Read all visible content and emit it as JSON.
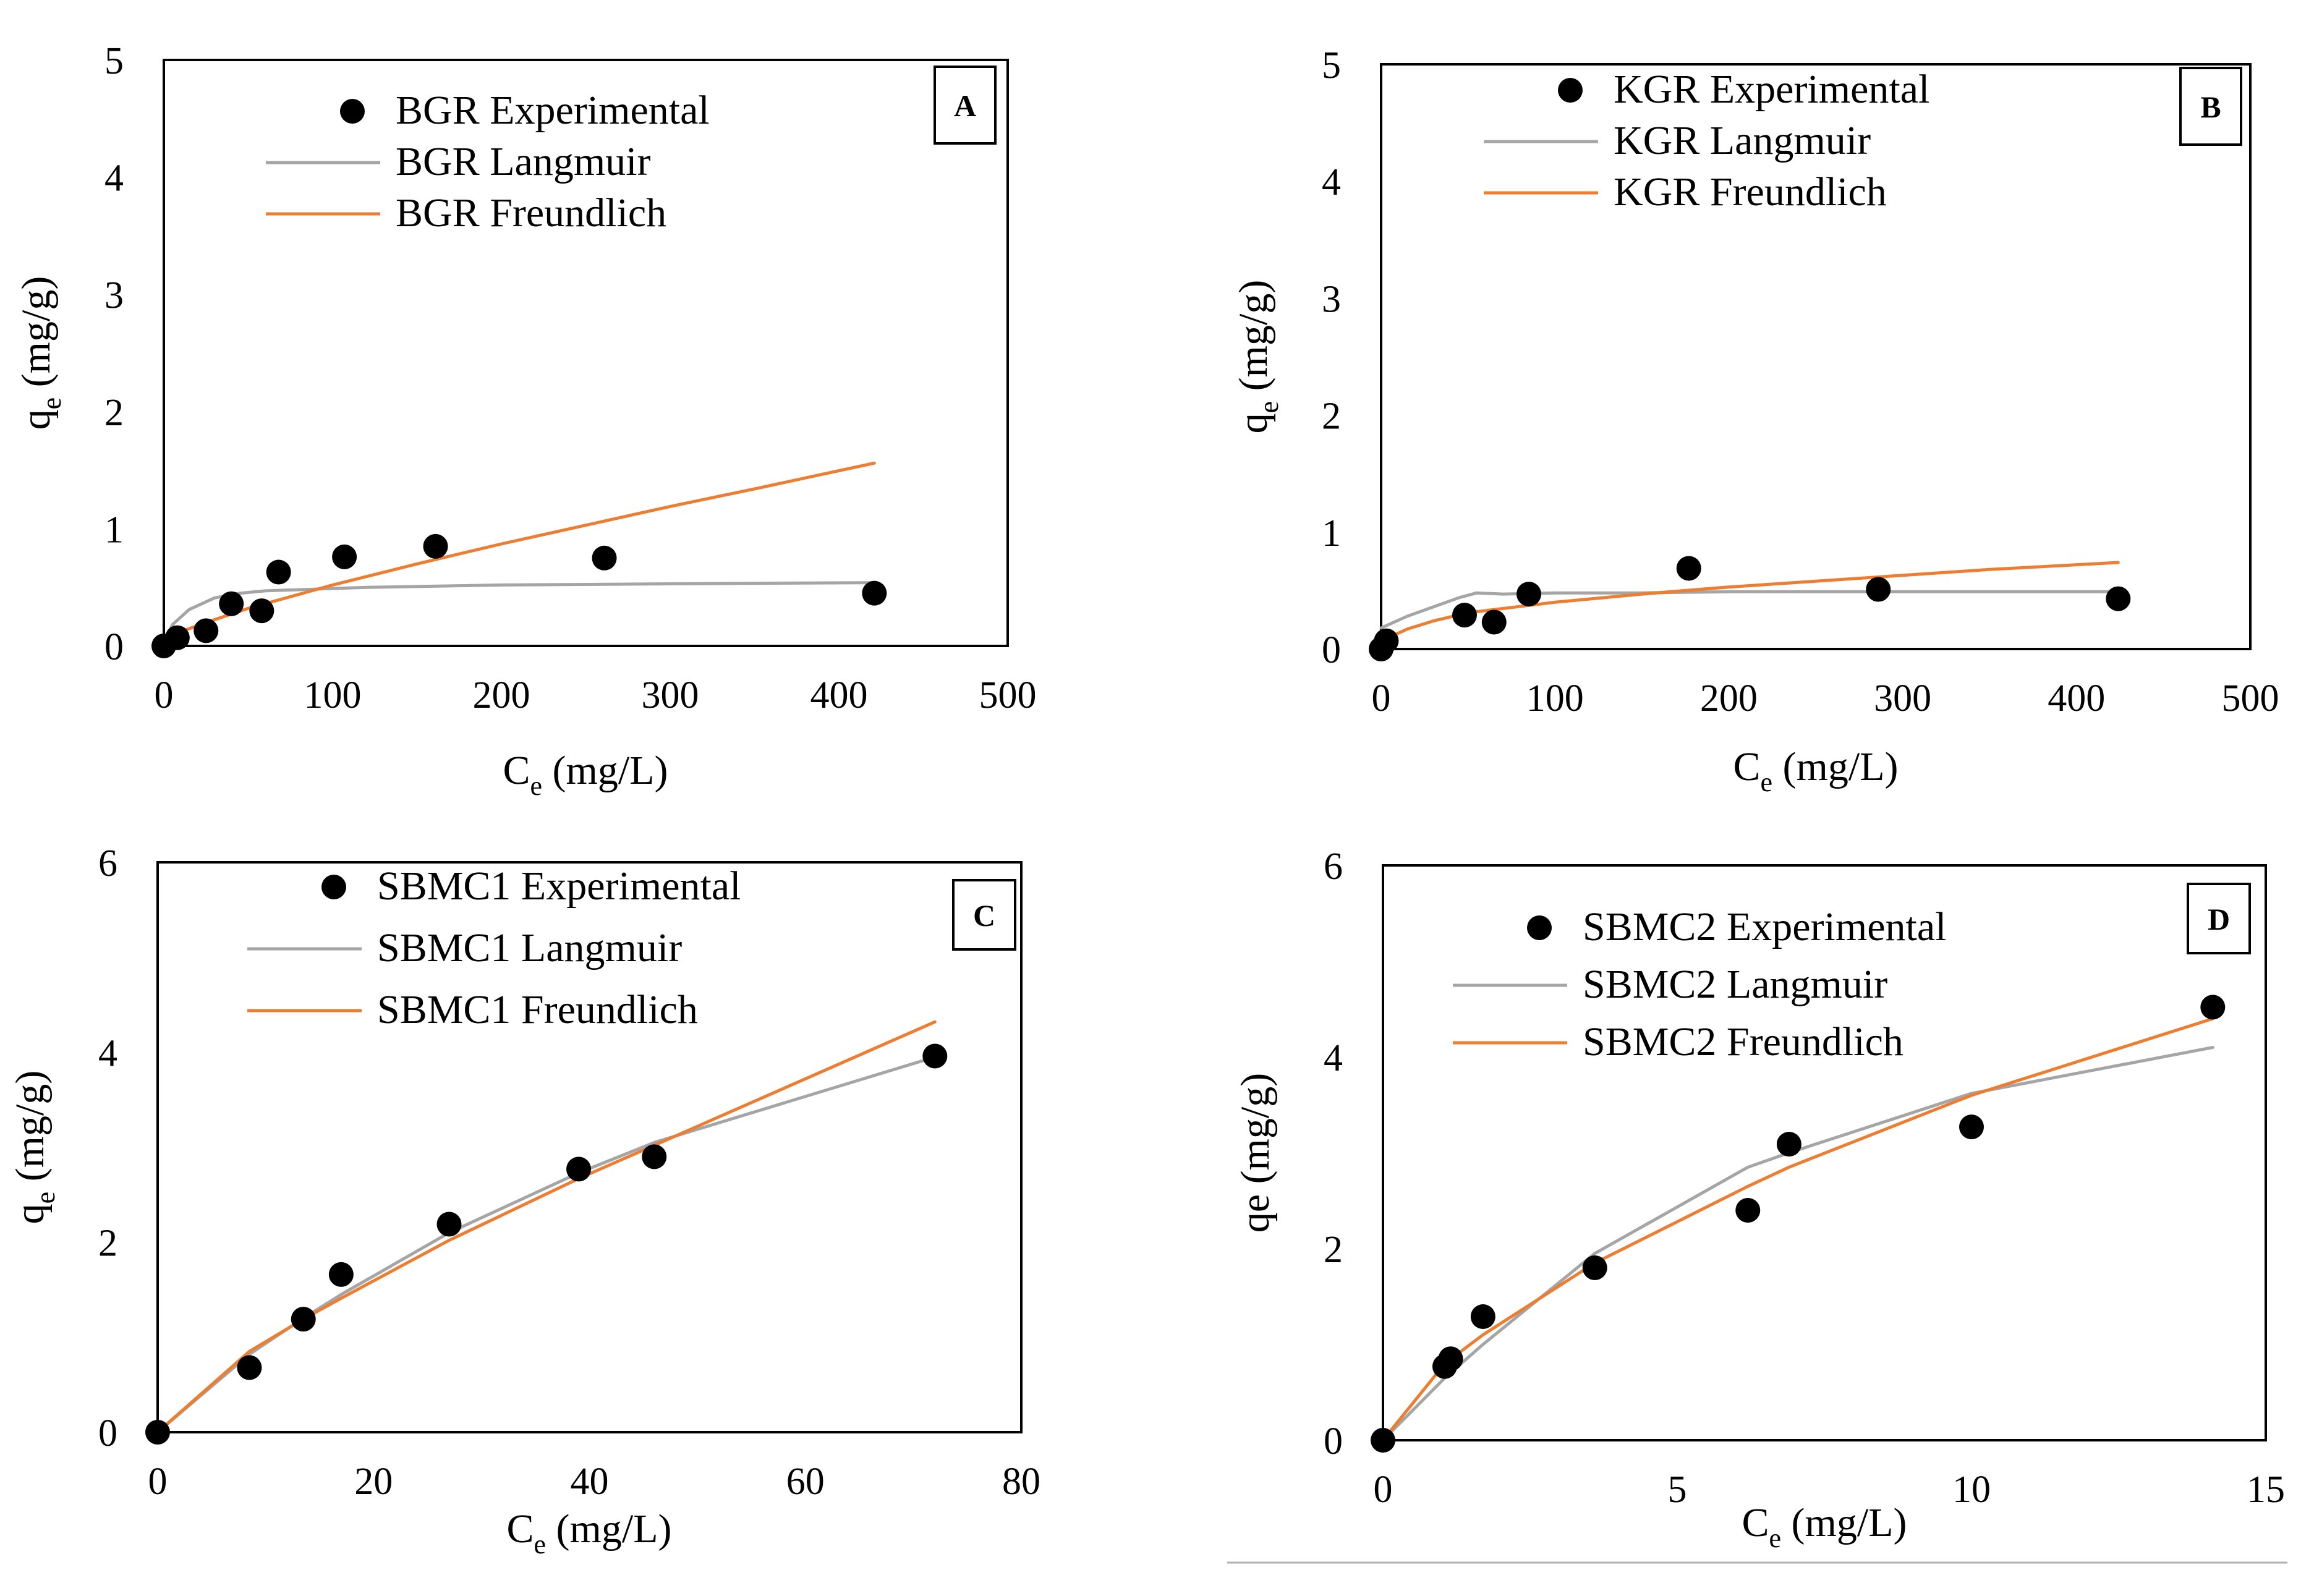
{
  "chart_data": [
    {
      "type": "scatter",
      "panel_label": "A",
      "xlabel": {
        "base": "C",
        "sub": "e",
        "rest": " (mg/L)"
      },
      "ylabel": {
        "base": "q",
        "sub": "e",
        "rest": " (mg/g)"
      },
      "xlim": [
        0,
        500
      ],
      "ylim": [
        0,
        5
      ],
      "xticks": [
        "0",
        "100",
        "200",
        "300",
        "400",
        "500"
      ],
      "yticks": [
        "0",
        "1",
        "2",
        "3",
        "4",
        "5"
      ],
      "legend_position": "top-center",
      "series": [
        {
          "name": "BGR Experimental",
          "kind": "markers",
          "color": "#000000",
          "points": [
            [
              0,
              0
            ],
            [
              8,
              0.07
            ],
            [
              25,
              0.13
            ],
            [
              40,
              0.36
            ],
            [
              58,
              0.3
            ],
            [
              68,
              0.63
            ],
            [
              107,
              0.76
            ],
            [
              161,
              0.85
            ],
            [
              261,
              0.75
            ],
            [
              421,
              0.45
            ]
          ]
        },
        {
          "name": "BGR Langmuir",
          "kind": "line",
          "color": "#a5a5a5",
          "points": [
            [
              0,
              0
            ],
            [
              5,
              0.18
            ],
            [
              15,
              0.31
            ],
            [
              30,
              0.41
            ],
            [
              45,
              0.45
            ],
            [
              60,
              0.47
            ],
            [
              80,
              0.48
            ],
            [
              120,
              0.5
            ],
            [
              200,
              0.52
            ],
            [
              300,
              0.53
            ],
            [
              421,
              0.54
            ]
          ]
        },
        {
          "name": "BGR Freundlich",
          "kind": "line",
          "color": "#ed7d31",
          "points": [
            [
              0,
              0
            ],
            [
              8,
              0.11
            ],
            [
              25,
              0.2
            ],
            [
              50,
              0.32
            ],
            [
              100,
              0.52
            ],
            [
              150,
              0.7
            ],
            [
              200,
              0.87
            ],
            [
              250,
              1.03
            ],
            [
              300,
              1.19
            ],
            [
              350,
              1.34
            ],
            [
              421,
              1.56
            ]
          ]
        }
      ]
    },
    {
      "type": "scatter",
      "panel_label": "B",
      "xlabel": {
        "base": "C",
        "sub": "e",
        "rest": " (mg/L)"
      },
      "ylabel": {
        "base": "q",
        "sub": "e",
        "rest": " (mg/g)"
      },
      "xlim": [
        0,
        500
      ],
      "ylim": [
        0,
        5
      ],
      "xticks": [
        "0",
        "100",
        "200",
        "300",
        "400",
        "500"
      ],
      "yticks": [
        "0",
        "1",
        "2",
        "3",
        "4",
        "5"
      ],
      "legend_position": "top-center",
      "series": [
        {
          "name": "KGR Experimental",
          "kind": "markers",
          "color": "#000000",
          "points": [
            [
              0,
              0
            ],
            [
              3,
              0.07
            ],
            [
              48,
              0.29
            ],
            [
              65,
              0.23
            ],
            [
              85,
              0.47
            ],
            [
              177,
              0.69
            ],
            [
              286,
              0.51
            ],
            [
              424,
              0.43
            ]
          ]
        },
        {
          "name": "KGR Langmuir",
          "kind": "line",
          "color": "#a5a5a5",
          "points": [
            [
              0,
              0.18
            ],
            [
              15,
              0.28
            ],
            [
              30,
              0.36
            ],
            [
              45,
              0.44
            ],
            [
              55,
              0.48
            ],
            [
              70,
              0.47
            ],
            [
              100,
              0.48
            ],
            [
              150,
              0.48
            ],
            [
              200,
              0.49
            ],
            [
              300,
              0.49
            ],
            [
              424,
              0.49
            ]
          ]
        },
        {
          "name": "KGR Freundlich",
          "kind": "line",
          "color": "#ed7d31",
          "points": [
            [
              0,
              0.07
            ],
            [
              15,
              0.17
            ],
            [
              30,
              0.24
            ],
            [
              50,
              0.31
            ],
            [
              100,
              0.4
            ],
            [
              150,
              0.47
            ],
            [
              200,
              0.53
            ],
            [
              250,
              0.58
            ],
            [
              300,
              0.63
            ],
            [
              350,
              0.68
            ],
            [
              424,
              0.74
            ]
          ]
        }
      ]
    },
    {
      "type": "scatter",
      "panel_label": "C",
      "xlabel": {
        "base": "C",
        "sub": "e",
        "rest": " (mg/L)"
      },
      "ylabel": {
        "base": "q",
        "sub": "e",
        "rest": " (mg/g)"
      },
      "xlim": [
        0,
        80
      ],
      "ylim": [
        0,
        6
      ],
      "xticks": [
        "0",
        "20",
        "40",
        "60",
        "80"
      ],
      "yticks": [
        "0",
        "2",
        "4",
        "6"
      ],
      "legend_position": "top-center",
      "series": [
        {
          "name": "SBMC1 Experimental",
          "kind": "markers",
          "color": "#000000",
          "points": [
            [
              0,
              0
            ],
            [
              8.5,
              0.68
            ],
            [
              13.5,
              1.19
            ],
            [
              17,
              1.66
            ],
            [
              27,
              2.19
            ],
            [
              39,
              2.77
            ],
            [
              46,
              2.9
            ],
            [
              72,
              3.96
            ]
          ]
        },
        {
          "name": "SBMC1 Langmuir",
          "kind": "line",
          "color": "#a5a5a5",
          "points": [
            [
              0,
              0
            ],
            [
              8.5,
              0.82
            ],
            [
              13.5,
              1.2
            ],
            [
              17,
              1.45
            ],
            [
              27,
              2.1
            ],
            [
              39,
              2.73
            ],
            [
              46,
              3.05
            ],
            [
              72,
              3.95
            ]
          ]
        },
        {
          "name": "SBMC1 Freundlich",
          "kind": "line",
          "color": "#ed7d31",
          "points": [
            [
              0,
              0
            ],
            [
              8.5,
              0.85
            ],
            [
              13.5,
              1.19
            ],
            [
              17,
              1.41
            ],
            [
              27,
              2.02
            ],
            [
              39,
              2.67
            ],
            [
              46,
              3.02
            ],
            [
              72,
              4.32
            ]
          ]
        }
      ]
    },
    {
      "type": "scatter",
      "panel_label": "D",
      "xlabel": {
        "base": "C",
        "sub": "e",
        "rest": " (mg/L)"
      },
      "ylabel": {
        "base": "qe",
        "sub": "",
        "rest": " (mg/g)"
      },
      "xlim": [
        0,
        15
      ],
      "ylim": [
        0,
        6
      ],
      "xticks": [
        "0",
        "5",
        "10",
        "15"
      ],
      "yticks": [
        "0",
        "2",
        "4",
        "6"
      ],
      "legend_position": "top-center",
      "series": [
        {
          "name": "SBMC2 Experimental",
          "kind": "markers",
          "color": "#000000",
          "points": [
            [
              0,
              0
            ],
            [
              1.05,
              0.77
            ],
            [
              1.15,
              0.85
            ],
            [
              1.7,
              1.29
            ],
            [
              3.6,
              1.8
            ],
            [
              6.2,
              2.4
            ],
            [
              6.9,
              3.09
            ],
            [
              10.0,
              3.27
            ],
            [
              14.1,
              4.52
            ]
          ]
        },
        {
          "name": "SBMC2 Langmuir",
          "kind": "line",
          "color": "#a5a5a5",
          "points": [
            [
              0,
              0
            ],
            [
              1.05,
              0.65
            ],
            [
              1.7,
              1.0
            ],
            [
              3.6,
              1.95
            ],
            [
              6.2,
              2.85
            ],
            [
              6.9,
              3.0
            ],
            [
              10.0,
              3.62
            ],
            [
              14.1,
              4.1
            ]
          ]
        },
        {
          "name": "SBMC2 Freundlich",
          "kind": "line",
          "color": "#ed7d31",
          "points": [
            [
              0,
              0
            ],
            [
              1.05,
              0.8
            ],
            [
              1.7,
              1.1
            ],
            [
              3.6,
              1.85
            ],
            [
              6.2,
              2.65
            ],
            [
              6.9,
              2.85
            ],
            [
              10.0,
              3.6
            ],
            [
              14.1,
              4.4
            ]
          ]
        }
      ]
    }
  ]
}
